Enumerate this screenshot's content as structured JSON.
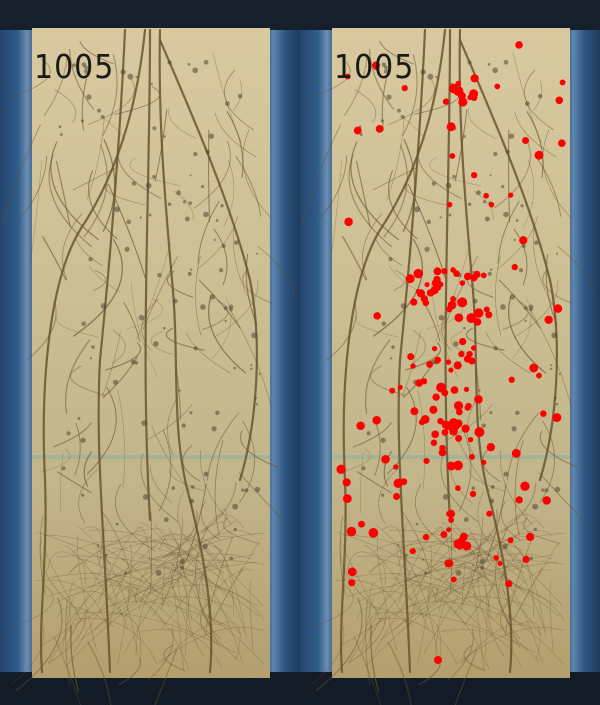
{
  "panels": [
    {
      "id": "original",
      "label": "1005"
    },
    {
      "id": "annotated",
      "label": "1005",
      "marker_color": "#ff0000"
    }
  ],
  "colors": {
    "paper": "#cdbf97",
    "paper_dark": "#9c8a60",
    "root": "#6a5330",
    "frame_blue": "#2f5c8a",
    "marker": "#ff0000"
  }
}
